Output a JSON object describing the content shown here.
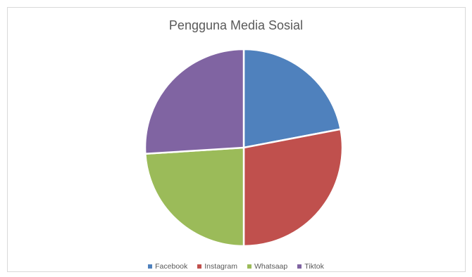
{
  "chart_data": {
    "type": "pie",
    "title": "Pengguna Media Sosial",
    "categories": [
      "Facebook",
      "Instagram",
      "Whatsaap",
      "Tiktok"
    ],
    "values": [
      22,
      28,
      24,
      26
    ],
    "colors": [
      "#4f81bd",
      "#c0504d",
      "#9bbb59",
      "#8064a2"
    ],
    "start_angle_deg": 0,
    "legend_position": "bottom"
  }
}
